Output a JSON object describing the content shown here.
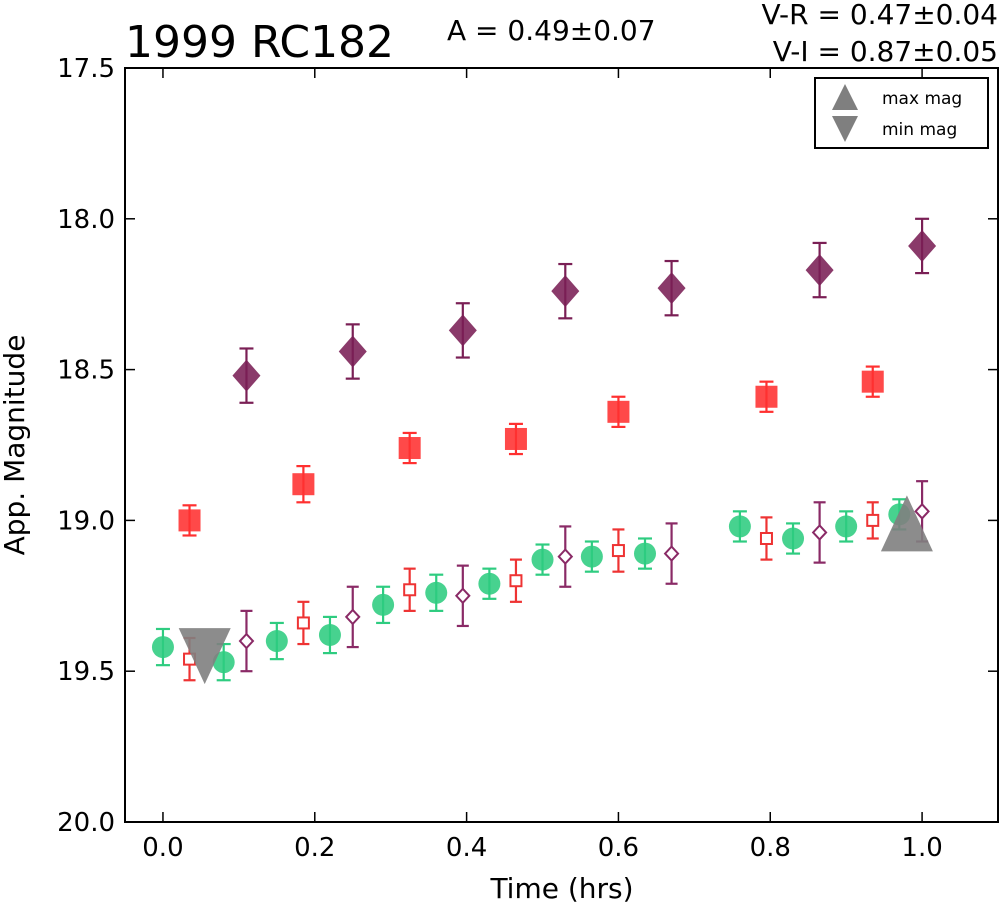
{
  "header": {
    "title": "1999 RC182",
    "amplitude": "A  = 0.49±0.07",
    "color_vr": "V-R = 0.47±0.04",
    "color_vi": "V-I  = 0.87±0.05"
  },
  "legend": {
    "max_label": "max mag",
    "min_label": "min mag",
    "placement": "top-right"
  },
  "chart_data": {
    "type": "scatter",
    "title": "1999 RC182",
    "xlabel": "Time (hrs)",
    "ylabel": "App. Magnitude",
    "xlim": [
      -0.05,
      1.1
    ],
    "ylim": [
      20.0,
      17.5
    ],
    "y_inverted": true,
    "grid": false,
    "x_ticks": [
      0.0,
      0.2,
      0.4,
      0.6,
      0.8,
      1.0
    ],
    "x_tick_labels": [
      "0.0",
      "0.2",
      "0.4",
      "0.6",
      "0.8",
      "1.0"
    ],
    "y_ticks": [
      17.5,
      18.0,
      18.5,
      19.0,
      19.5,
      20.0
    ],
    "y_tick_labels": [
      "17.5",
      "18.0",
      "18.5",
      "19.0",
      "19.5",
      "20.0"
    ],
    "series": [
      {
        "marker": "circle",
        "filled": true,
        "color": "#2ecc80",
        "points": [
          {
            "x": 0.0,
            "y": 19.42,
            "err": 0.06
          },
          {
            "x": 0.08,
            "y": 19.47,
            "err": 0.06
          },
          {
            "x": 0.15,
            "y": 19.4,
            "err": 0.06
          },
          {
            "x": 0.22,
            "y": 19.38,
            "err": 0.06
          },
          {
            "x": 0.29,
            "y": 19.28,
            "err": 0.06
          },
          {
            "x": 0.36,
            "y": 19.24,
            "err": 0.06
          },
          {
            "x": 0.43,
            "y": 19.21,
            "err": 0.05
          },
          {
            "x": 0.5,
            "y": 19.13,
            "err": 0.05
          },
          {
            "x": 0.565,
            "y": 19.12,
            "err": 0.05
          },
          {
            "x": 0.635,
            "y": 19.11,
            "err": 0.05
          },
          {
            "x": 0.76,
            "y": 19.02,
            "err": 0.05
          },
          {
            "x": 0.83,
            "y": 19.06,
            "err": 0.05
          },
          {
            "x": 0.9,
            "y": 19.02,
            "err": 0.05
          },
          {
            "x": 0.97,
            "y": 18.98,
            "err": 0.05
          }
        ]
      },
      {
        "marker": "square",
        "filled": false,
        "color": "#ee3333",
        "points": [
          {
            "x": 0.035,
            "y": 19.46,
            "err": 0.07
          },
          {
            "x": 0.185,
            "y": 19.34,
            "err": 0.07
          },
          {
            "x": 0.325,
            "y": 19.23,
            "err": 0.07
          },
          {
            "x": 0.465,
            "y": 19.2,
            "err": 0.07
          },
          {
            "x": 0.6,
            "y": 19.1,
            "err": 0.07
          },
          {
            "x": 0.795,
            "y": 19.06,
            "err": 0.07
          },
          {
            "x": 0.935,
            "y": 19.0,
            "err": 0.06
          }
        ]
      },
      {
        "marker": "diamond",
        "filled": false,
        "color": "#8a2a66",
        "points": [
          {
            "x": 0.11,
            "y": 19.4,
            "err": 0.1
          },
          {
            "x": 0.25,
            "y": 19.32,
            "err": 0.1
          },
          {
            "x": 0.395,
            "y": 19.25,
            "err": 0.1
          },
          {
            "x": 0.53,
            "y": 19.12,
            "err": 0.1
          },
          {
            "x": 0.67,
            "y": 19.11,
            "err": 0.1
          },
          {
            "x": 0.865,
            "y": 19.04,
            "err": 0.1
          },
          {
            "x": 1.0,
            "y": 18.97,
            "err": 0.1
          }
        ]
      },
      {
        "marker": "square",
        "filled": true,
        "color": "#ff3030",
        "points": [
          {
            "x": 0.035,
            "y": 19.0,
            "err": 0.05
          },
          {
            "x": 0.185,
            "y": 18.88,
            "err": 0.06
          },
          {
            "x": 0.325,
            "y": 18.76,
            "err": 0.05
          },
          {
            "x": 0.465,
            "y": 18.73,
            "err": 0.05
          },
          {
            "x": 0.6,
            "y": 18.64,
            "err": 0.05
          },
          {
            "x": 0.795,
            "y": 18.59,
            "err": 0.05
          },
          {
            "x": 0.935,
            "y": 18.54,
            "err": 0.05
          }
        ]
      },
      {
        "marker": "diamond",
        "filled": true,
        "color": "#7a1f55",
        "points": [
          {
            "x": 0.11,
            "y": 18.52,
            "err": 0.09
          },
          {
            "x": 0.25,
            "y": 18.44,
            "err": 0.09
          },
          {
            "x": 0.395,
            "y": 18.37,
            "err": 0.09
          },
          {
            "x": 0.53,
            "y": 18.24,
            "err": 0.09
          },
          {
            "x": 0.67,
            "y": 18.23,
            "err": 0.09
          },
          {
            "x": 0.865,
            "y": 18.17,
            "err": 0.09
          },
          {
            "x": 1.0,
            "y": 18.09,
            "err": 0.09
          }
        ]
      }
    ],
    "extrema": [
      {
        "kind": "max",
        "marker": "triangle-up",
        "x": 0.98,
        "y": 19.01,
        "color": "#7f7f7f"
      },
      {
        "kind": "min",
        "marker": "triangle-down",
        "x": 0.055,
        "y": 19.45,
        "color": "#7f7f7f"
      }
    ]
  }
}
